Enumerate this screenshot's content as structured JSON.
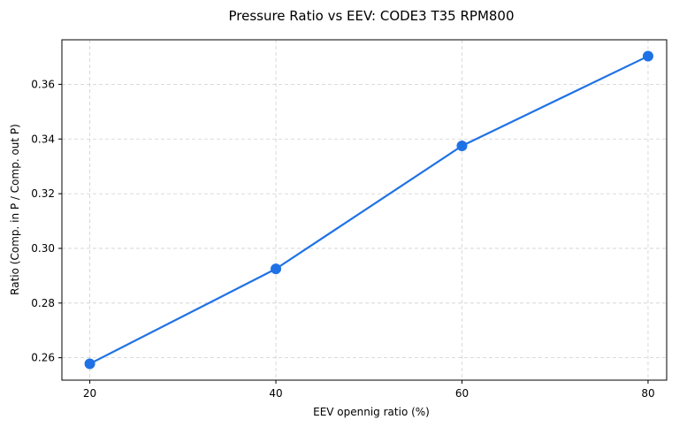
{
  "chart_data": {
    "type": "line",
    "title": "Pressure Ratio vs EEV: CODE3 T35 RPM800",
    "xlabel": "EEV opennig ratio (%)",
    "ylabel": "Ratio (Comp. in P / Comp. out P)",
    "x": [
      20,
      40,
      60,
      80
    ],
    "series": [
      {
        "values": [
          0.2578,
          0.2925,
          0.3375,
          0.3703
        ]
      }
    ],
    "xlim": [
      17,
      82
    ],
    "ylim": [
      0.2518,
      0.3763
    ],
    "xticks": [
      20,
      40,
      60,
      80
    ],
    "xtick_labels": [
      "20",
      "40",
      "60",
      "80"
    ],
    "yticks": [
      0.26,
      0.28,
      0.3,
      0.32,
      0.34,
      0.36
    ],
    "ytick_labels": [
      "0.26",
      "0.28",
      "0.30",
      "0.32",
      "0.34",
      "0.36"
    ],
    "grid": true,
    "line_color": "#1f72e6",
    "marker": "circle"
  }
}
